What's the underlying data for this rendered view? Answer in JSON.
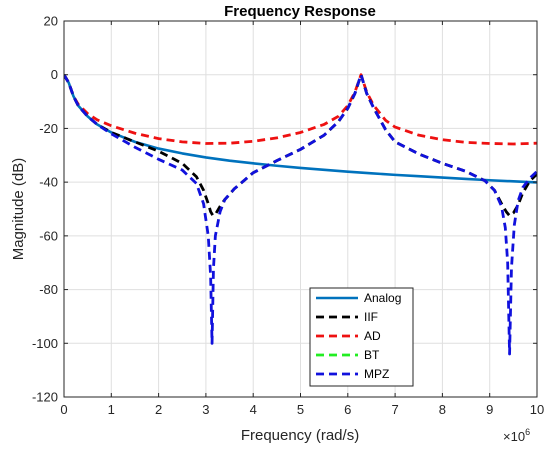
{
  "chart_data": {
    "type": "line",
    "title": "Frequency Response",
    "xlabel": "Frequency (rad/s)",
    "ylabel": "Magnitude (dB)",
    "x_multiplier_label": "×10",
    "x_multiplier_exponent": "6",
    "xlim": [
      0,
      10
    ],
    "ylim": [
      -120,
      20
    ],
    "x_ticks": [
      0,
      1,
      2,
      3,
      4,
      5,
      6,
      7,
      8,
      9,
      10
    ],
    "x_tick_labels": [
      "0",
      "1",
      "2",
      "3",
      "4",
      "5",
      "6",
      "7",
      "8",
      "9",
      "10"
    ],
    "y_ticks": [
      20,
      0,
      -20,
      -40,
      -60,
      -80,
      -100,
      -120
    ],
    "y_tick_labels": [
      "20",
      "0",
      "-20",
      "-40",
      "-60",
      "-80",
      "-100",
      "-120"
    ],
    "grid": true,
    "legend_position": "bottom-center",
    "series": [
      {
        "name": "Analog",
        "color": "#0072BD",
        "style": "solid",
        "x": [
          0,
          0.1,
          0.2,
          0.3,
          0.5,
          0.7,
          1.0,
          1.5,
          2.0,
          2.5,
          3.0,
          3.5,
          4.0,
          4.5,
          5.0,
          5.5,
          6.0,
          6.5,
          7.0,
          7.5,
          8.0,
          8.5,
          9.0,
          9.5,
          10.0
        ],
        "y": [
          0,
          -3,
          -8,
          -11.5,
          -15.5,
          -18.5,
          -21.5,
          -25,
          -27.5,
          -29.3,
          -30.8,
          -32,
          -33,
          -33.9,
          -34.7,
          -35.4,
          -36.1,
          -36.7,
          -37.3,
          -37.8,
          -38.3,
          -38.8,
          -39.3,
          -39.7,
          -40.1
        ]
      },
      {
        "name": "IIF",
        "color": "#000000",
        "style": "dashed",
        "x": [
          0,
          0.1,
          0.2,
          0.3,
          0.5,
          0.7,
          1.0,
          1.5,
          2.0,
          2.5,
          2.8,
          2.95,
          3.05,
          3.1,
          3.15,
          3.2,
          3.3,
          3.4,
          3.6,
          3.8,
          4.0,
          4.5,
          5.0,
          5.5,
          5.8,
          6.0,
          6.15,
          6.28,
          6.4,
          6.55,
          6.8,
          7.0,
          7.5,
          8.0,
          8.5,
          8.9,
          9.1,
          9.25,
          9.35,
          9.42,
          9.5,
          9.6,
          9.7,
          9.85,
          10.0
        ],
        "y": [
          0,
          -3,
          -8,
          -11.5,
          -15.5,
          -18.5,
          -21.5,
          -25,
          -28.5,
          -33,
          -38,
          -43,
          -48,
          -51,
          -52.5,
          -52,
          -49,
          -46.5,
          -42.5,
          -39.5,
          -36.5,
          -32,
          -27.8,
          -22.5,
          -17.5,
          -12.5,
          -7,
          0,
          -7,
          -12.5,
          -20.5,
          -25,
          -29.5,
          -33,
          -36,
          -39.5,
          -43,
          -48,
          -51,
          -52.5,
          -51.5,
          -48.5,
          -44,
          -39.5,
          -37
        ]
      },
      {
        "name": "AD",
        "color": "#EE1111",
        "style": "dashed",
        "x": [
          0,
          0.1,
          0.2,
          0.3,
          0.5,
          0.7,
          1.0,
          1.5,
          2.0,
          2.5,
          3.0,
          3.5,
          4.0,
          4.5,
          5.0,
          5.5,
          5.8,
          6.0,
          6.15,
          6.28,
          6.4,
          6.55,
          6.8,
          7.0,
          7.5,
          8.0,
          8.5,
          9.0,
          9.5,
          10.0
        ],
        "y": [
          0,
          -3,
          -8,
          -11,
          -14.5,
          -16.8,
          -19,
          -21.8,
          -23.8,
          -25,
          -25.6,
          -25.5,
          -24.8,
          -23.5,
          -21.5,
          -18.5,
          -15.5,
          -11.5,
          -6.5,
          0,
          -6.5,
          -11.5,
          -17,
          -19.5,
          -22.5,
          -24.2,
          -25.2,
          -25.6,
          -25.8,
          -25.5
        ]
      },
      {
        "name": "BT",
        "color": "#22EE22",
        "style": "dashed",
        "x": [],
        "y": []
      },
      {
        "name": "MPZ",
        "color": "#1111DD",
        "style": "dashed",
        "x": [
          0,
          0.1,
          0.2,
          0.3,
          0.5,
          0.7,
          1.0,
          1.5,
          2.0,
          2.5,
          2.8,
          2.95,
          3.05,
          3.1,
          3.13,
          3.16,
          3.2,
          3.3,
          3.4,
          3.6,
          3.8,
          4.0,
          4.5,
          5.0,
          5.5,
          5.8,
          6.0,
          6.15,
          6.28,
          6.4,
          6.55,
          6.8,
          7.0,
          7.5,
          8.0,
          8.5,
          8.9,
          9.1,
          9.25,
          9.33,
          9.38,
          9.42,
          9.46,
          9.52,
          9.6,
          9.7,
          9.85,
          10.0
        ],
        "y": [
          0,
          -3,
          -8,
          -11.5,
          -15.5,
          -18.5,
          -22,
          -27,
          -31.5,
          -35.5,
          -40.5,
          -48,
          -60,
          -75,
          -100,
          -72,
          -60,
          -51,
          -46.5,
          -42.5,
          -39.5,
          -36.5,
          -32,
          -27.8,
          -22.5,
          -17.5,
          -12.5,
          -7,
          0,
          -7,
          -12.5,
          -20.5,
          -25,
          -29.5,
          -33,
          -36,
          -39.5,
          -43,
          -49,
          -57,
          -70,
          -104,
          -72,
          -56,
          -47,
          -42,
          -38.5,
          -36
        ]
      }
    ]
  }
}
